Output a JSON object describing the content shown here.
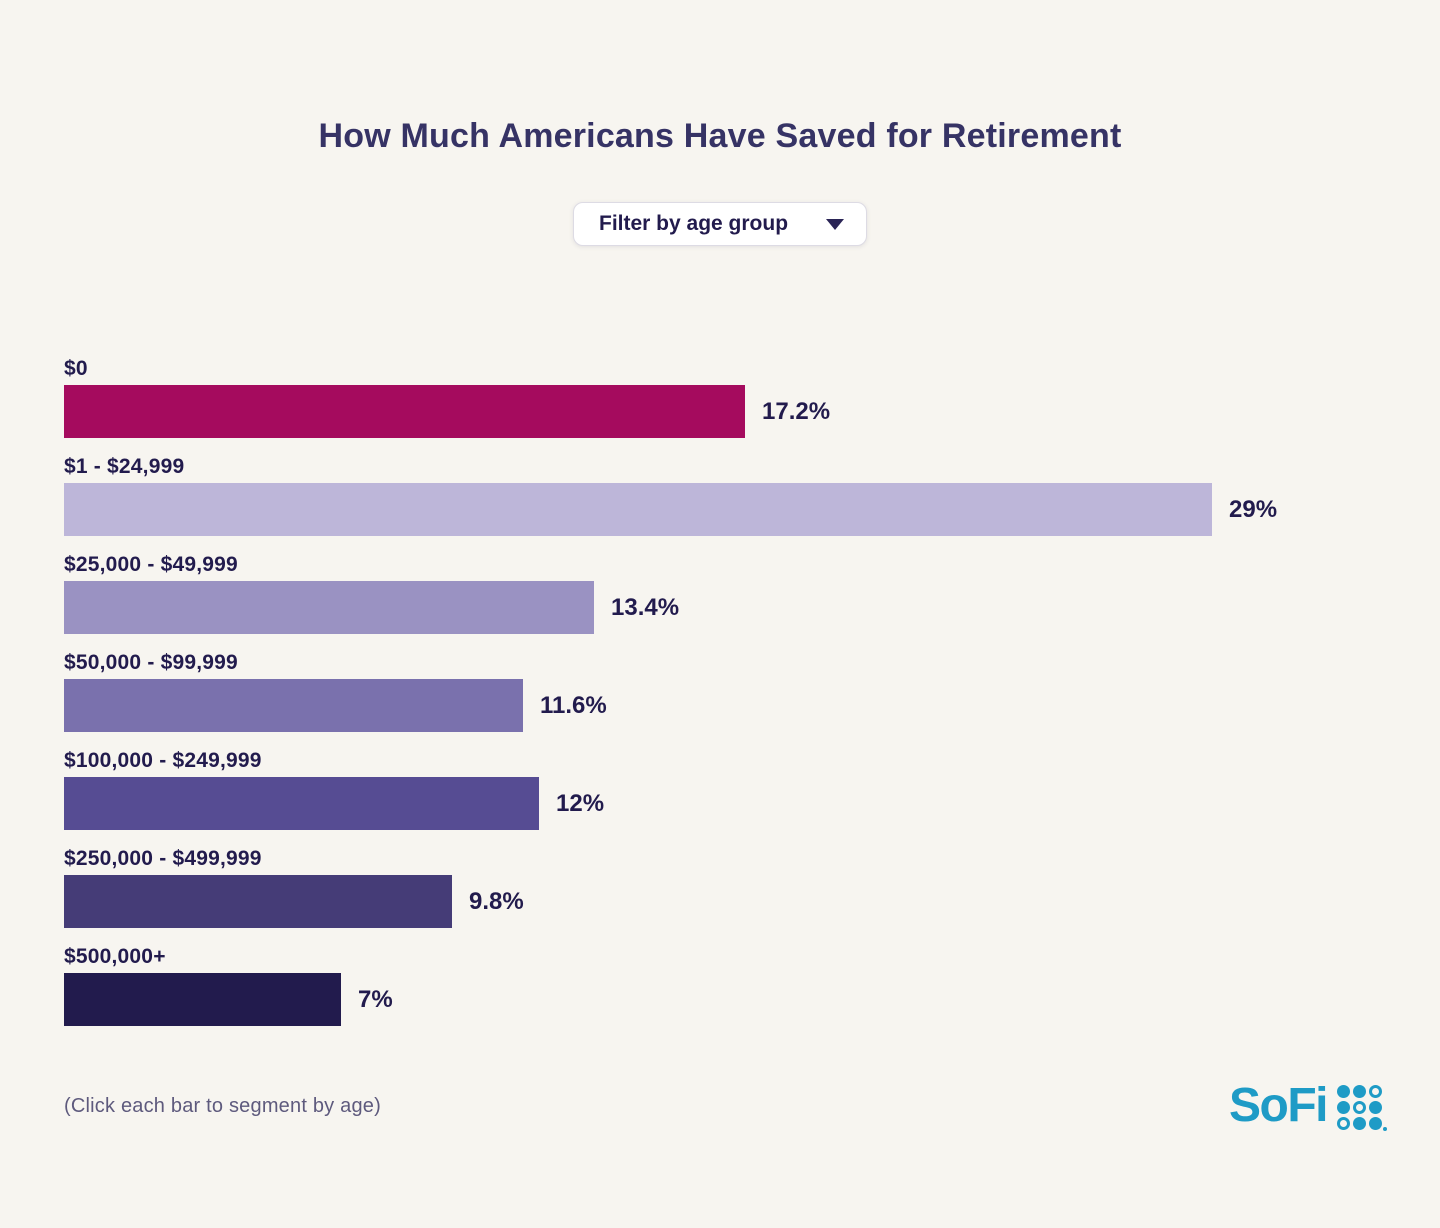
{
  "header": {
    "title": "How Much Americans Have Saved for Retirement"
  },
  "filter": {
    "label": "Filter by age group"
  },
  "chart_data": {
    "type": "bar",
    "orientation": "horizontal",
    "title": "How Much Americans Have Saved for Retirement",
    "categories": [
      "$0",
      "$1 - $24,999",
      "$25,000 - $49,999",
      "$50,000 - $99,999",
      "$100,000 - $249,999",
      "$250,000 - $499,999",
      "$500,000+"
    ],
    "values": [
      17.2,
      29,
      13.4,
      11.6,
      12,
      9.8,
      7
    ],
    "value_labels": [
      "17.2%",
      "29%",
      "13.4%",
      "11.6%",
      "12%",
      "9.8%",
      "7%"
    ],
    "bar_colors": [
      "#A50B5E",
      "#BDB6D9",
      "#9A92C2",
      "#7A71AD",
      "#564C93",
      "#453C77",
      "#221B4D"
    ],
    "xlim": [
      0,
      29
    ],
    "grid": false,
    "legend": false,
    "note": "Bars labeled above with savings range, value percentage at right of each bar"
  },
  "footer": {
    "note": "(Click each bar to segment by age)",
    "brand": "SoFi",
    "logo_dots": [
      1,
      1,
      0,
      1,
      0,
      1,
      0,
      1,
      1
    ]
  },
  "colors": {
    "background": "#F7F5F0",
    "title_text": "#363365",
    "dark_text": "#221B4D",
    "note_text": "#5E5A7D",
    "brand_teal": "#1E9BC6"
  }
}
